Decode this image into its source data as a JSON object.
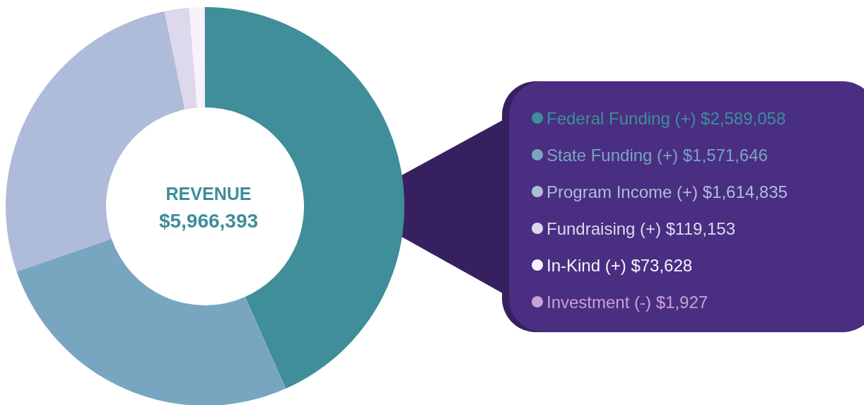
{
  "chart_data": {
    "type": "donut",
    "title": "REVENUE",
    "subtitle": "$5,966,393",
    "categories": [
      "Federal Funding (+)",
      "State Funding (+)",
      "Program Income (+)",
      "Fundraising (+)",
      "In-Kind (+)",
      "Investment (-)"
    ],
    "values": [
      2589058,
      1571646,
      1614835,
      119153,
      73628,
      1927
    ],
    "value_labels": [
      "$2,589,058",
      "$1,571,646",
      "$1,614,835",
      "$119,153",
      "$73,628",
      "$1,927"
    ],
    "colors": [
      "#3f8e99",
      "#78a6c0",
      "#aebcd9",
      "#ddd8ec",
      "#f8f2fb",
      "#c9a0d8"
    ],
    "legend": "right"
  }
}
